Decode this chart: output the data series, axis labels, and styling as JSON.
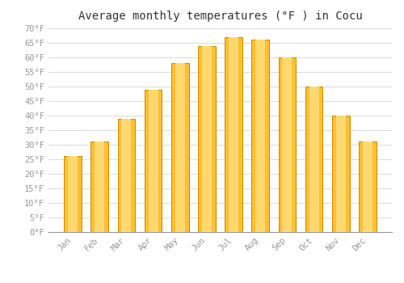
{
  "title": "Average monthly temperatures (°F ) in Cocu",
  "months": [
    "Jan",
    "Feb",
    "Mar",
    "Apr",
    "May",
    "Jun",
    "Jul",
    "Aug",
    "Sep",
    "Oct",
    "Nov",
    "Dec"
  ],
  "values": [
    26,
    31,
    39,
    49,
    58,
    64,
    67,
    66,
    60,
    50,
    40,
    31
  ],
  "bar_color_top": "#FFA500",
  "bar_color_bottom": "#FFD060",
  "bar_edge_color": "#CC8800",
  "background_color": "#FFFFFF",
  "plot_bg_color": "#FFFFFF",
  "grid_color": "#DDDDDD",
  "ylim": [
    0,
    70
  ],
  "yticks": [
    0,
    5,
    10,
    15,
    20,
    25,
    30,
    35,
    40,
    45,
    50,
    55,
    60,
    65,
    70
  ],
  "title_fontsize": 10,
  "tick_fontsize": 7.5,
  "tick_color": "#999999",
  "font_family": "monospace",
  "bar_width": 0.65
}
